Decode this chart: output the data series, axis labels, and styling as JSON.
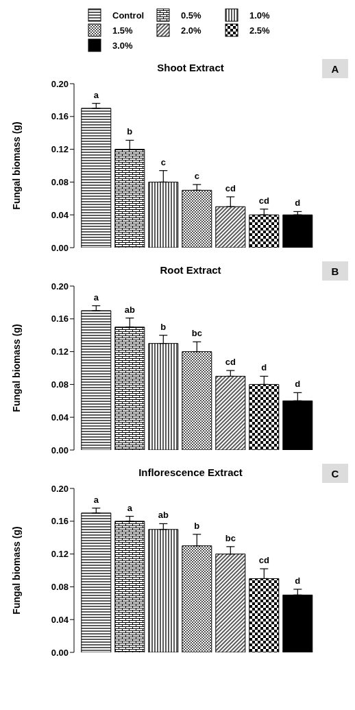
{
  "chart_data": [
    {
      "type": "bar",
      "title": "Shoot Extract",
      "ylabel": "Fungal biomass (g)",
      "annotations": [
        "A"
      ],
      "legend": "top",
      "categories": [
        null
      ],
      "ylim": [
        0,
        0.2
      ],
      "yticks": [
        {
          "value": 0,
          "label": "0.00"
        },
        {
          "value": 0.04,
          "label": "0.04"
        },
        {
          "value": 0.08,
          "label": "0.08"
        },
        {
          "value": 0.12,
          "label": "0.12"
        },
        {
          "value": 0.16,
          "label": "0.16"
        },
        {
          "value": 0.2,
          "label": "0.20"
        }
      ],
      "series": [
        {
          "name": "Control",
          "color": "#000000",
          "values": [
            0.17
          ],
          "errors": [
            [
              0.17,
              0.176
            ]
          ],
          "value_labels": [
            "a"
          ]
        },
        {
          "name": "0.5%",
          "color": "#000000",
          "values": [
            0.12
          ],
          "errors": [
            [
              0.12,
              0.131
            ]
          ],
          "value_labels": [
            "b"
          ]
        },
        {
          "name": "1.0%",
          "color": "#000000",
          "values": [
            0.08
          ],
          "errors": [
            [
              0.08,
              0.094
            ]
          ],
          "value_labels": [
            "c"
          ]
        },
        {
          "name": "1.5%",
          "color": "#000000",
          "values": [
            0.07
          ],
          "errors": [
            [
              0.07,
              0.077
            ]
          ],
          "value_labels": [
            "c"
          ]
        },
        {
          "name": "2.0%",
          "color": "#000000",
          "values": [
            0.05
          ],
          "errors": [
            [
              0.05,
              0.062
            ]
          ],
          "value_labels": [
            "cd"
          ]
        },
        {
          "name": "2.5%",
          "color": "#000000",
          "values": [
            0.04
          ],
          "errors": [
            [
              0.04,
              0.047
            ]
          ],
          "value_labels": [
            "cd"
          ]
        },
        {
          "name": "3.0%",
          "color": "#000000",
          "values": [
            0.04
          ],
          "errors": [
            [
              0.04,
              0.044
            ]
          ],
          "value_labels": [
            "d"
          ]
        }
      ]
    },
    {
      "type": "bar",
      "title": "Root Extract",
      "ylabel": "Fungal biomass (g)",
      "annotations": [
        "B"
      ],
      "categories": [
        null
      ],
      "ylim": [
        0,
        0.2
      ],
      "yticks": [
        {
          "value": 0,
          "label": "0.00"
        },
        {
          "value": 0.04,
          "label": "0.04"
        },
        {
          "value": 0.08,
          "label": "0.08"
        },
        {
          "value": 0.12,
          "label": "0.12"
        },
        {
          "value": 0.16,
          "label": "0.16"
        },
        {
          "value": 0.2,
          "label": "0.20"
        }
      ],
      "series": [
        {
          "color": "#000000",
          "values": [
            0.17
          ],
          "errors": [
            [
              0.17,
              0.176
            ]
          ],
          "value_labels": [
            "a"
          ]
        },
        {
          "color": "#000000",
          "values": [
            0.15
          ],
          "errors": [
            [
              0.15,
              0.161
            ]
          ],
          "value_labels": [
            "ab"
          ]
        },
        {
          "color": "#000000",
          "values": [
            0.13
          ],
          "errors": [
            [
              0.13,
              0.14
            ]
          ],
          "value_labels": [
            "b"
          ]
        },
        {
          "color": "#000000",
          "values": [
            0.12
          ],
          "errors": [
            [
              0.12,
              0.132
            ]
          ],
          "value_labels": [
            "bc"
          ]
        },
        {
          "color": "#000000",
          "values": [
            0.09
          ],
          "errors": [
            [
              0.09,
              0.097
            ]
          ],
          "value_labels": [
            "cd"
          ]
        },
        {
          "color": "#000000",
          "values": [
            0.08
          ],
          "errors": [
            [
              0.08,
              0.09
            ]
          ],
          "value_labels": [
            "d"
          ]
        },
        {
          "color": "#000000",
          "values": [
            0.06
          ],
          "errors": [
            [
              0.06,
              0.07
            ]
          ],
          "value_labels": [
            "d"
          ]
        }
      ]
    },
    {
      "type": "bar",
      "title": "Inflorescence Extract",
      "ylabel": "Fungal biomass (g)",
      "annotations": [
        "C"
      ],
      "categories": [
        null
      ],
      "ylim": [
        0,
        0.2
      ],
      "yticks": [
        {
          "value": 0,
          "label": "0.00"
        },
        {
          "value": 0.04,
          "label": "0.04"
        },
        {
          "value": 0.08,
          "label": "0.08"
        },
        {
          "value": 0.12,
          "label": "0.12"
        },
        {
          "value": 0.16,
          "label": "0.16"
        },
        {
          "value": 0.2,
          "label": "0.20"
        }
      ],
      "series": [
        {
          "color": "#000000",
          "values": [
            0.17
          ],
          "errors": [
            [
              0.17,
              0.176
            ]
          ],
          "value_labels": [
            "a"
          ]
        },
        {
          "color": "#000000",
          "values": [
            0.16
          ],
          "errors": [
            [
              0.16,
              0.166
            ]
          ],
          "value_labels": [
            "a"
          ]
        },
        {
          "color": "#000000",
          "values": [
            0.15
          ],
          "errors": [
            [
              0.15,
              0.157
            ]
          ],
          "value_labels": [
            "ab"
          ]
        },
        {
          "color": "#000000",
          "values": [
            0.13
          ],
          "errors": [
            [
              0.13,
              0.144
            ]
          ],
          "value_labels": [
            "b"
          ]
        },
        {
          "color": "#000000",
          "values": [
            0.12
          ],
          "errors": [
            [
              0.12,
              0.129
            ]
          ],
          "value_labels": [
            "bc"
          ]
        },
        {
          "color": "#000000",
          "values": [
            0.09
          ],
          "errors": [
            [
              0.09,
              0.102
            ]
          ],
          "value_labels": [
            "cd"
          ]
        },
        {
          "color": "#000000",
          "values": [
            0.07
          ],
          "errors": [
            [
              0.07,
              0.077
            ]
          ],
          "value_labels": [
            "d"
          ]
        }
      ]
    }
  ]
}
